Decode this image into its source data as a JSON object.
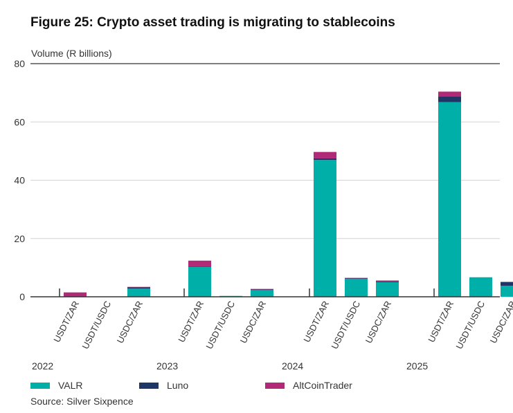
{
  "title": "Figure 25:  Crypto asset trading is migrating to stablecoins",
  "source": "Source: Silver Sixpence",
  "colors": {
    "VALR": "#00b0a8",
    "Luno": "#1f3566",
    "AltCoinTrader": "#b02a78",
    "axis": "#333333",
    "grid": "#d4d4d4"
  },
  "chart_data": {
    "type": "bar",
    "stacked": true,
    "ylabel": "Volume (R billions)",
    "ylim": [
      0,
      80
    ],
    "yticks": [
      0,
      20,
      40,
      60,
      80
    ],
    "grid": true,
    "legend_position": "bottom",
    "groups": [
      {
        "year": "2022",
        "categories": [
          "USDT/ZAR",
          "USDT/USDC",
          "USDC/ZAR"
        ]
      },
      {
        "year": "2023",
        "categories": [
          "USDT/ZAR",
          "USDT/USDC",
          "USDC/ZAR"
        ]
      },
      {
        "year": "2024",
        "categories": [
          "USDT/ZAR",
          "USDT/USDC",
          "USDC/ZAR"
        ]
      },
      {
        "year": "2025",
        "categories": [
          "USDT/ZAR",
          "USDT/USDC",
          "USDC/ZAR"
        ]
      }
    ],
    "series": [
      {
        "name": "VALR",
        "values": [
          0,
          0,
          2.8,
          10.2,
          0.3,
          2.3,
          47.0,
          6.3,
          5.0,
          66.8,
          6.7,
          3.8
        ]
      },
      {
        "name": "Luno",
        "values": [
          0,
          0,
          0.4,
          0.2,
          0,
          0.2,
          0.5,
          0.1,
          0.3,
          2.0,
          0,
          1.3
        ]
      },
      {
        "name": "AltCoinTrader",
        "values": [
          1.5,
          0,
          0.2,
          2.0,
          0,
          0.2,
          2.2,
          0.1,
          0.3,
          1.6,
          0,
          0
        ]
      }
    ]
  }
}
